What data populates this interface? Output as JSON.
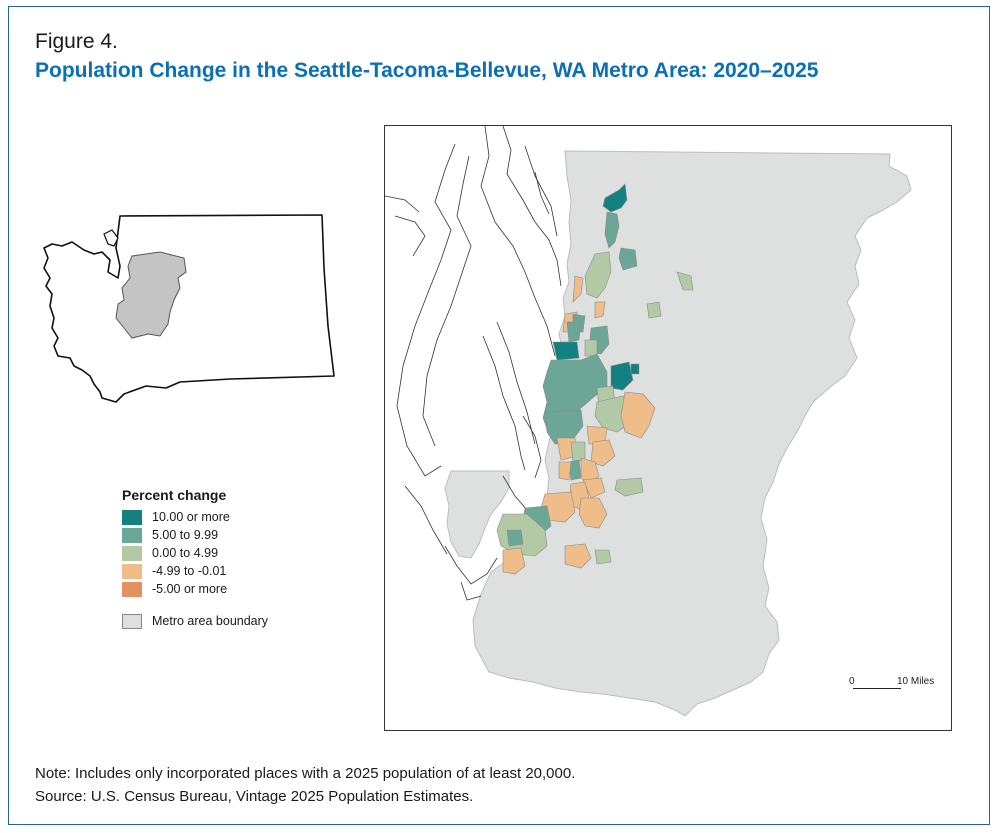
{
  "figure": {
    "label": "Figure 4.",
    "title": "Population Change in the Seattle-Tacoma-Bellevue, WA Metro Area: 2020–2025"
  },
  "legend": {
    "title": "Percent change",
    "classes": [
      {
        "label": "10.00 or more",
        "color": "#138180"
      },
      {
        "label": "5.00 to 9.99",
        "color": "#6ba696"
      },
      {
        "label": "0.00 to 4.99",
        "color": "#b3c9a6"
      },
      {
        "label": "-4.99 to -0.01",
        "color": "#efbd89"
      },
      {
        "label": "-5.00 or more",
        "color": "#e39161"
      }
    ],
    "boundary": {
      "label": "Metro area boundary",
      "color": "#dedfdf"
    }
  },
  "scalebar": {
    "start": "0",
    "end": "10 Miles"
  },
  "notes": {
    "note": "Note: Includes only incorporated places with a 2025 population of at least 20,000.",
    "source": "Source: U.S. Census Bureau, Vintage 2025 Population Estimates."
  },
  "colors": {
    "title": "#0b6fb8",
    "metro_fill": "#dedfdf",
    "inset_fill": "#c4c4c4",
    "frame": "#2f5f8f"
  }
}
